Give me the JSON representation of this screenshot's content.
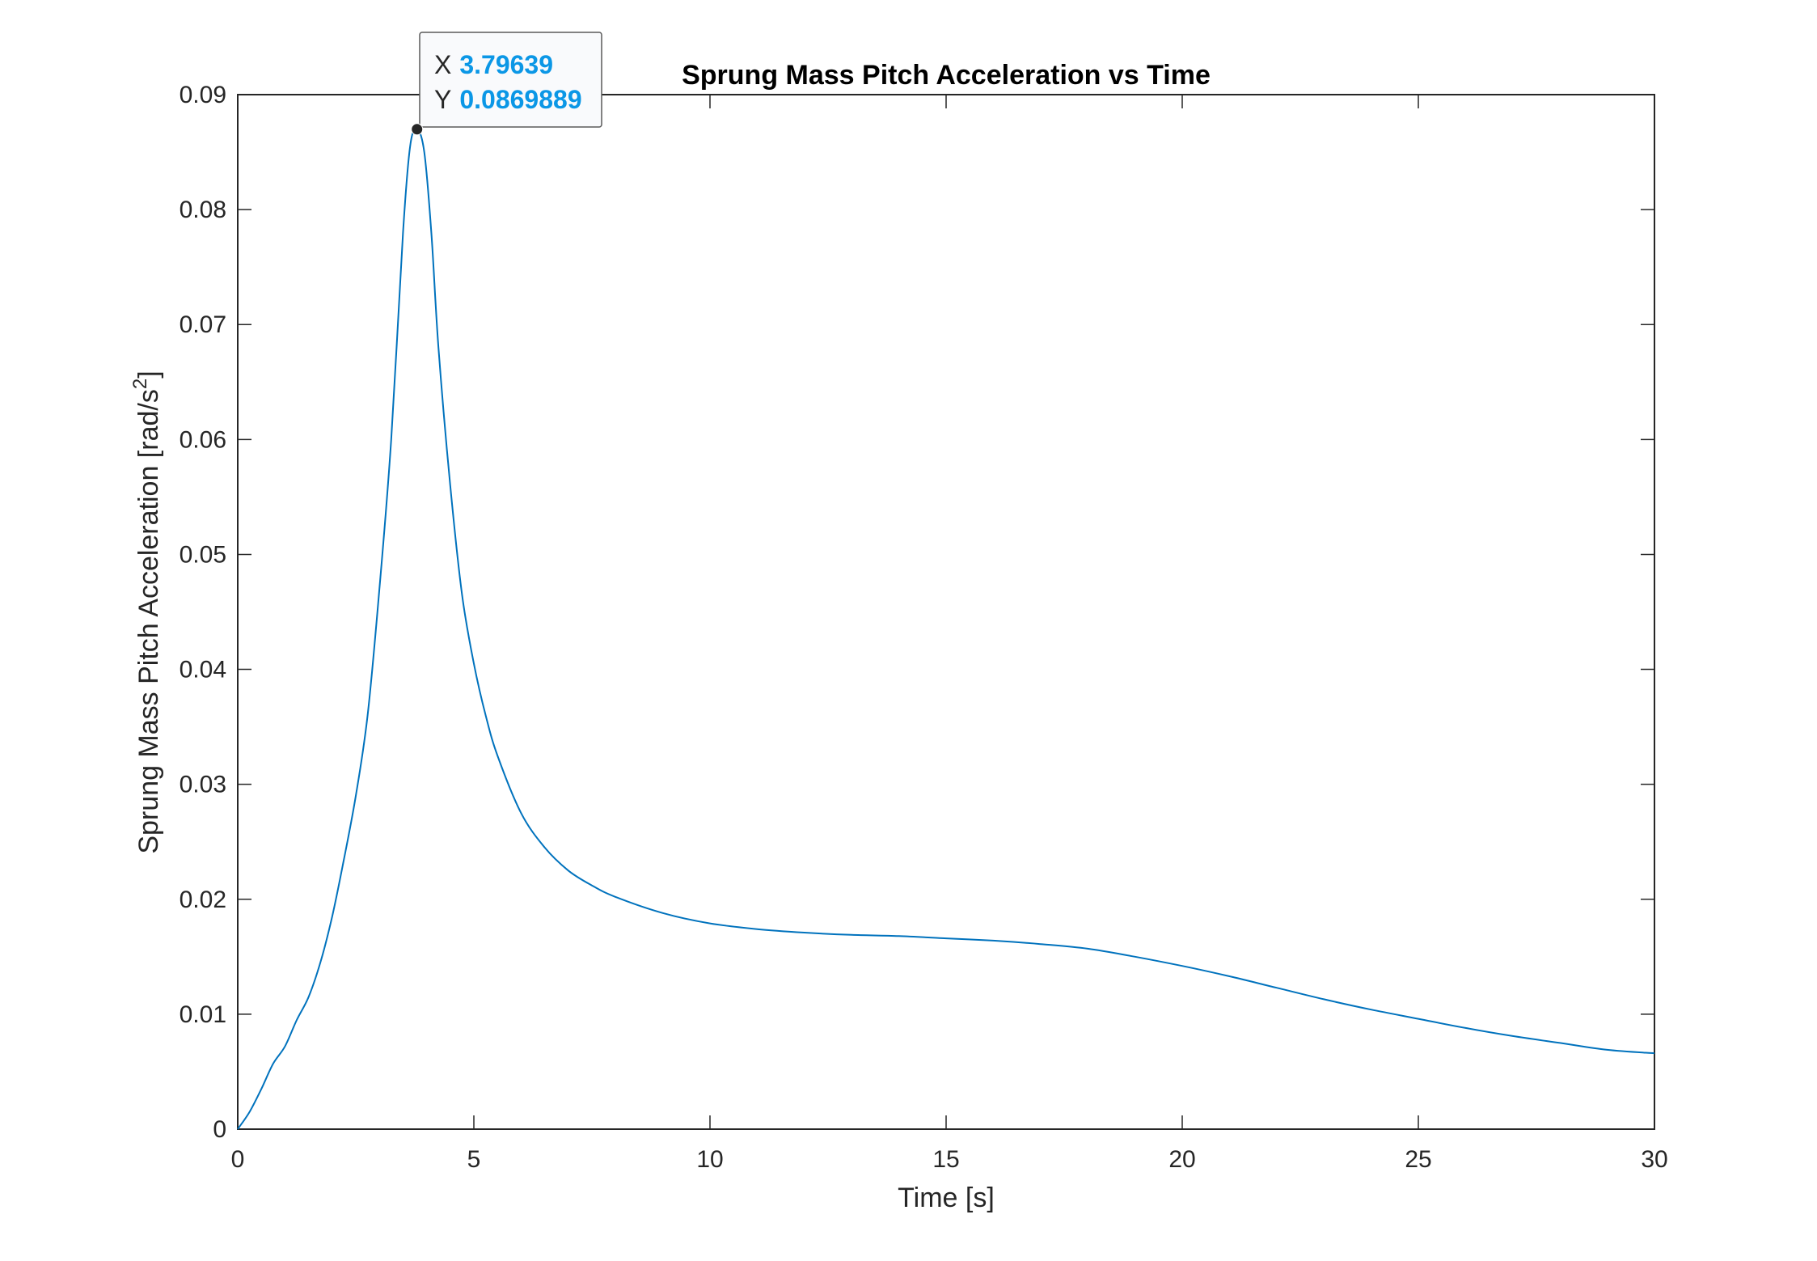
{
  "chart_data": {
    "type": "line",
    "title": "Sprung Mass Pitch Acceleration vs Time",
    "xlabel": "Time [s]",
    "ylabel": "Sprung Mass Pitch Acceleration [rad/s",
    "ylabel_superscript": "2",
    "ylabel_suffix": "]",
    "xlim": [
      0,
      30
    ],
    "ylim": [
      0,
      0.09
    ],
    "xticks": [
      0,
      5,
      10,
      15,
      20,
      25,
      30
    ],
    "xtick_labels": [
      "0",
      "5",
      "10",
      "15",
      "20",
      "25",
      "30"
    ],
    "yticks": [
      0,
      0.01,
      0.02,
      0.03,
      0.04,
      0.05,
      0.06,
      0.07,
      0.08,
      0.09
    ],
    "ytick_labels": [
      "0",
      "0.01",
      "0.02",
      "0.03",
      "0.04",
      "0.05",
      "0.06",
      "0.07",
      "0.08",
      "0.09"
    ],
    "grid": false,
    "series": [
      {
        "color": "#0072bd",
        "x": [
          0,
          0.25,
          0.5,
          0.75,
          1.0,
          1.25,
          1.5,
          1.75,
          2.0,
          2.25,
          2.5,
          2.75,
          3.0,
          3.25,
          3.5,
          3.65,
          3.79639,
          3.95,
          4.1,
          4.25,
          4.5,
          4.75,
          5.0,
          5.25,
          5.5,
          6.0,
          6.5,
          7.0,
          7.5,
          8.0,
          9.0,
          10.0,
          11.0,
          12.0,
          13.0,
          14.0,
          15.0,
          16.0,
          17.0,
          18.0,
          19.0,
          20.0,
          21.0,
          22.0,
          23.0,
          24.0,
          25.0,
          26.0,
          27.0,
          28.0,
          29.0,
          30.0
        ],
        "y": [
          0,
          0.0015,
          0.0035,
          0.0057,
          0.0072,
          0.0095,
          0.0115,
          0.0145,
          0.0185,
          0.0235,
          0.029,
          0.036,
          0.047,
          0.06,
          0.078,
          0.0855,
          0.0869889,
          0.085,
          0.078,
          0.068,
          0.056,
          0.0465,
          0.0405,
          0.036,
          0.0325,
          0.0275,
          0.0245,
          0.0225,
          0.0212,
          0.0202,
          0.0188,
          0.0179,
          0.0174,
          0.0171,
          0.0169,
          0.0168,
          0.0166,
          0.0164,
          0.0161,
          0.0157,
          0.015,
          0.0142,
          0.0133,
          0.0123,
          0.0113,
          0.0104,
          0.0096,
          0.0088,
          0.0081,
          0.0075,
          0.0069,
          0.0066
        ]
      }
    ],
    "datatip": {
      "x_key": "X",
      "x_value": "3.79639",
      "y_key": "Y",
      "y_value": "0.0869889"
    }
  }
}
